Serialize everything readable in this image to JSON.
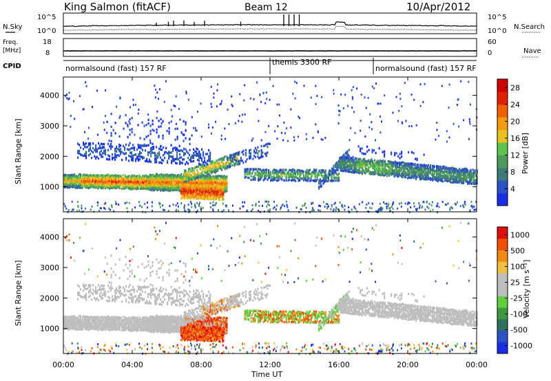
{
  "header": {
    "station": "King Salmon (fitACF)",
    "beam": "Beam 12",
    "date": "10/Apr/2012"
  },
  "side_labels": {
    "nsky": "N.Sky",
    "freq_line1": "Freq.",
    "freq_line2": "[MHz]",
    "cpid": "CPID",
    "nsearch": "N.Search",
    "nave": "Nave"
  },
  "small_panels": {
    "noise_left_ticks": [
      "10^5",
      "10^0"
    ],
    "noise_right_ticks": [
      "10^5",
      "10^0"
    ],
    "freq_left_ticks": [
      "18",
      "8"
    ],
    "freq_right_ticks": [
      "60",
      "0"
    ]
  },
  "cpid_segments": [
    {
      "label": "normalsound (fast) 157 RF",
      "start_hour": 0,
      "end_hour": 12
    },
    {
      "label": "themis 3300 RF",
      "start_hour": 12,
      "end_hour": 18
    },
    {
      "label": "normalsound (fast) 157 RF",
      "start_hour": 18,
      "end_hour": 24
    }
  ],
  "colors": {
    "power_scale": [
      "#1a2ee8",
      "#2c52c8",
      "#3f7a7a",
      "#4e9a5a",
      "#5cc44a",
      "#e8c020",
      "#f29a10",
      "#f06000",
      "#e02000",
      "#d00000"
    ],
    "velocity_scale": [
      "#1a2ee8",
      "#2c52c8",
      "#2f6f5e",
      "#3e9a3e",
      "#60d040",
      "#bebebe",
      "#bebebe",
      "#f0c040",
      "#f08a10",
      "#f05000",
      "#e01010"
    ]
  },
  "chart_data": [
    {
      "type": "heatmap",
      "title": "Power",
      "xlabel": "Time UT",
      "ylabel": "Slant Range [km]",
      "x_range_hours": [
        0,
        24
      ],
      "x_tick_labels": [
        "00:00",
        "04:00",
        "08:00",
        "12:00",
        "16:00",
        "20:00",
        "00:00"
      ],
      "y_range_km": [
        180,
        4600
      ],
      "y_tick_labels": [
        "1000",
        "2000",
        "3000",
        "4000"
      ],
      "colorbar": {
        "label": "Power [dB]",
        "ticks": [
          "4",
          "8",
          "12",
          "16",
          "20",
          "24",
          "28"
        ],
        "range": [
          0,
          30
        ]
      }
    },
    {
      "type": "heatmap",
      "title": "Velocity",
      "xlabel": "Time UT",
      "ylabel": "Slant Range [km]",
      "x_range_hours": [
        0,
        24
      ],
      "x_tick_labels": [
        "00:00",
        "04:00",
        "08:00",
        "12:00",
        "16:00",
        "20:00",
        "00:00"
      ],
      "y_range_km": [
        180,
        4600
      ],
      "y_tick_labels": [
        "1000",
        "2000",
        "3000",
        "4000"
      ],
      "colorbar": {
        "label": "Velocity [m s⁻¹]",
        "ticks": [
          "1000",
          "500",
          "100",
          "25",
          "-25",
          "-100",
          "-500",
          "-1000"
        ],
        "range": [
          1000,
          -1000
        ]
      }
    }
  ]
}
